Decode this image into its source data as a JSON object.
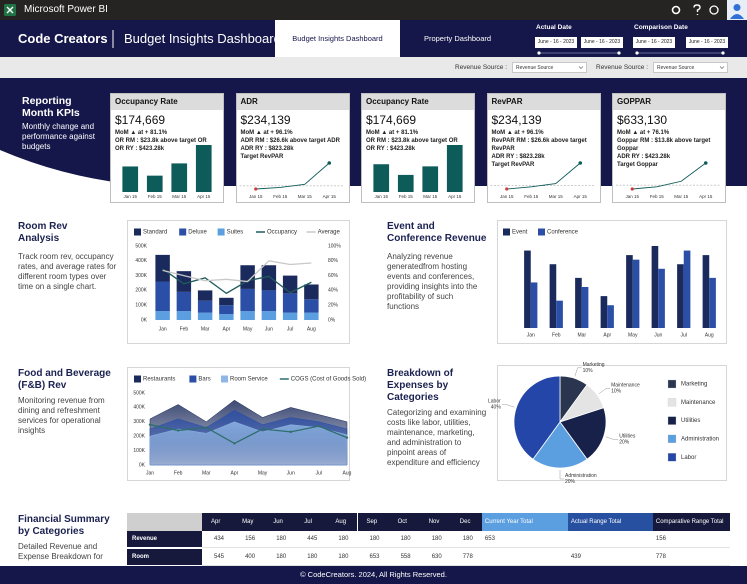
{
  "app": {
    "title": "Microsoft Power BI"
  },
  "header": {
    "brand": "Code Creators",
    "title": "Budget Insights Dashboard",
    "tabs": [
      "Budget Insights Dashboard",
      "Property Dashboard"
    ],
    "active_tab": 0,
    "dates": [
      {
        "label": "Actual Date",
        "from": "June - 16 - 2023",
        "to": "June - 16 - 2023"
      },
      {
        "label": "Comparison Date",
        "from": "June - 16 - 2023",
        "to": "June - 16 - 2023"
      }
    ]
  },
  "filters": [
    {
      "label": "Revenue Source :",
      "value": "Revenue Source"
    },
    {
      "label": "Revenue Source :",
      "value": "Revenue Source"
    }
  ],
  "kpi_intro": {
    "title": "Reporting Month KPIs",
    "text": "Monthly change and performance against budgets"
  },
  "kpis": [
    {
      "title": "Occupancy Rate",
      "value": "$174,669",
      "lines": [
        "MoM ▲ at + 81.1%",
        "OR RM : $23.8k above target OR",
        "OR RY : $423.28k"
      ],
      "chart": {
        "type": "bar",
        "categories": [
          "Jan 15",
          "Feb 15",
          "Mar 15",
          "Apr 15"
        ],
        "values": [
          2.5,
          1.6,
          2.8,
          4.6
        ],
        "color": "#0e5c59"
      }
    },
    {
      "title": "ADR",
      "value": "$234,139",
      "lines": [
        "MoM ▲ at + 96.1%",
        "ADR RM : $26.6k above target ADR",
        "ADR RY : $823.28k",
        "Target RevPAR"
      ],
      "chart": {
        "type": "line",
        "categories": [
          "Jan 15",
          "Feb 15",
          "Mar 15",
          "Apr 15"
        ],
        "values": [
          10,
          13,
          19,
          60
        ],
        "target": 16,
        "color": "#0e5c59"
      }
    },
    {
      "title": "Occupancy Rate",
      "value": "$174,669",
      "lines": [
        "MoM ▲ at + 81.1%",
        "OR RM : $23.8k above target OR",
        "OR RY : $423.28k"
      ],
      "chart": {
        "type": "bar",
        "categories": [
          "Jan 15",
          "Feb 15",
          "Mar 15",
          "Apr 15"
        ],
        "values": [
          2.6,
          1.6,
          2.4,
          4.4
        ],
        "color": "#0e5c59"
      }
    },
    {
      "title": "RevPAR",
      "value": "$234,139",
      "lines": [
        "MoM ▲ at + 96.1%",
        "RevPAR RM : $26.6k above target RevPAR",
        "ADR RY : $823.28k",
        "Target RevPAR"
      ],
      "chart": {
        "type": "line",
        "categories": [
          "Jan 15",
          "Feb 15",
          "Mar 15",
          "Apr 15"
        ],
        "values": [
          10,
          14,
          20,
          58
        ],
        "target": 16,
        "color": "#0e5c59"
      }
    },
    {
      "title": "GOPPAR",
      "value": "$633,130",
      "lines": [
        "MoM ▲ at + 76.1%",
        "Goppar RM : $13.8k above target Goppar",
        "ADR RY : $423.28k",
        "Target Goppar"
      ],
      "chart": {
        "type": "line",
        "categories": [
          "Jan 15",
          "Feb 15",
          "Mar 15",
          "Apr 15"
        ],
        "values": [
          8,
          12,
          22,
          55
        ],
        "target": 15,
        "color": "#0e5c59"
      }
    }
  ],
  "room_rev": {
    "title": "Room Rev Analysis",
    "text": "Track room rev, occupancy rates, and average rates for different room types over time on a single chart.",
    "chart": {
      "type": "combo",
      "categories": [
        "Jan",
        "Feb",
        "Mar",
        "Apr",
        "May",
        "Jun",
        "Jul",
        "Aug"
      ],
      "series": [
        {
          "name": "Standard",
          "type": "bar",
          "color": "#1b2a5c",
          "values": [
            180000,
            140000,
            70000,
            50000,
            160000,
            170000,
            120000,
            100000
          ]
        },
        {
          "name": "Deluxe",
          "type": "bar",
          "color": "#2b4ea6",
          "values": [
            200000,
            130000,
            80000,
            60000,
            150000,
            140000,
            130000,
            90000
          ]
        },
        {
          "name": "Suites",
          "type": "bar",
          "color": "#5b9fe0",
          "values": [
            60000,
            60000,
            50000,
            40000,
            60000,
            60000,
            50000,
            50000
          ]
        },
        {
          "name": "Occupancy",
          "type": "line",
          "axis": "y2",
          "color": "#1f5a5a",
          "values": [
            69,
            49,
            57,
            36,
            53,
            59,
            37,
            51
          ]
        },
        {
          "name": "Average",
          "type": "line",
          "axis": "y2",
          "color": "#c8c8c8",
          "values": [
            67,
            60,
            53,
            55,
            52,
            80,
            75,
            77
          ]
        }
      ],
      "ylim": [
        0,
        500000
      ],
      "yticks": [
        {
          "value": 0,
          "label": "0K"
        },
        {
          "value": 100000,
          "label": "100K"
        },
        {
          "value": 200000,
          "label": "200K"
        },
        {
          "value": 300000,
          "label": "300K"
        },
        {
          "value": 400000,
          "label": "400K"
        },
        {
          "value": 500000,
          "label": "500K"
        }
      ],
      "y2lim": [
        0,
        100
      ],
      "y2ticks": [
        {
          "value": 0,
          "label": "0%"
        },
        {
          "value": 20,
          "label": "20%"
        },
        {
          "value": 40,
          "label": "40%"
        },
        {
          "value": 60,
          "label": "60%"
        },
        {
          "value": 80,
          "label": "80%"
        },
        {
          "value": 100,
          "label": "100%"
        }
      ],
      "grid": false
    }
  },
  "event_rev": {
    "title": "Event and Conference Revenue",
    "text": "Analyzing revenue generatedfrom hosting events and conferences, providing insights into the profitability of such functions",
    "chart": {
      "type": "bar",
      "categories": [
        "Jan",
        "Feb",
        "Mar",
        "Apr",
        "May",
        "Jun",
        "Jul",
        "Aug"
      ],
      "series": [
        {
          "name": "Event",
          "type": "bar",
          "color": "#1b2a5c",
          "values": [
            85,
            70,
            55,
            35,
            80,
            90,
            70,
            80
          ]
        },
        {
          "name": "Conference",
          "type": "bar",
          "color": "#2b4ea6",
          "values": [
            50,
            30,
            45,
            25,
            75,
            65,
            85,
            55
          ]
        }
      ]
    }
  },
  "fnb_rev": {
    "title": "Food and Beverage (F&B) Rev",
    "text": "Monitoring revenue from dining and refreshment services for operational insights",
    "chart": {
      "type": "area",
      "categories": [
        "Jan",
        "Feb",
        "Mar",
        "Apr",
        "May",
        "Jun",
        "Jul",
        "Aug"
      ],
      "series": [
        {
          "name": "Restaurants",
          "type": "area",
          "color": "#1b2a5c",
          "values": [
            320000,
            420000,
            300000,
            450000,
            330000,
            400000,
            350000,
            300000
          ]
        },
        {
          "name": "Bars",
          "type": "area",
          "color": "#2b4ea6",
          "values": [
            250000,
            320000,
            260000,
            380000,
            280000,
            330000,
            300000,
            250000
          ]
        },
        {
          "name": "Room Service",
          "type": "area",
          "color": "#8fb7e6",
          "values": [
            200000,
            250000,
            220000,
            300000,
            230000,
            280000,
            260000,
            210000
          ]
        },
        {
          "name": "COGS (Cost of Goods Sold)",
          "type": "line",
          "color": "#2e6e6e",
          "values": [
            280000,
            240000,
            260000,
            150000,
            250000,
            230000,
            270000,
            190000
          ]
        }
      ],
      "ylim": [
        0,
        500000
      ],
      "yticks": [
        {
          "value": 0,
          "label": "0K"
        },
        {
          "value": 100000,
          "label": "100K"
        },
        {
          "value": 200000,
          "label": "200K"
        },
        {
          "value": 300000,
          "label": "300K"
        },
        {
          "value": 400000,
          "label": "400K"
        },
        {
          "value": 500000,
          "label": "500K"
        }
      ]
    }
  },
  "expenses": {
    "title": "Breakdown of Expenses by Categories",
    "text": "Categorizing and examining costs like labor, utilities, maintenance, marketing, and administration to pinpoint areas of expenditure and efficiency",
    "chart": {
      "type": "pie",
      "categories": [
        "Marketing",
        "Maintenance",
        "Utilities",
        "Administration",
        "Labor"
      ],
      "values": [
        10,
        10,
        20,
        20,
        40
      ],
      "value_labels": [
        "10%",
        "10%",
        "20%",
        "20%",
        "40%"
      ],
      "colors": [
        "#2a3650",
        "#e4e4e4",
        "#17214a",
        "#5b9fe0",
        "#2446a8"
      ]
    }
  },
  "financial_summary": {
    "title": "Financial Summary by Categories",
    "text": "Detailed Revenue and Expense Breakdown for",
    "table": {
      "columns": [
        "Apr",
        "May",
        "Jun",
        "Jul",
        "Aug",
        "Sep",
        "Oct",
        "Nov",
        "Dec",
        "Current Year Total",
        "Actual Range Total",
        "Comparative Range Total"
      ],
      "rows": [
        {
          "label": "Revenue",
          "cells": [
            434,
            156,
            180,
            445,
            180,
            180,
            180,
            180,
            180,
            653,
            null,
            156
          ]
        },
        {
          "label": "Room",
          "cells": [
            545,
            400,
            180,
            180,
            180,
            653,
            558,
            630,
            778,
            null,
            439,
            778
          ]
        }
      ]
    }
  },
  "footer": {
    "text": "© CodeCreators. 2024, All Rights Reserved."
  }
}
